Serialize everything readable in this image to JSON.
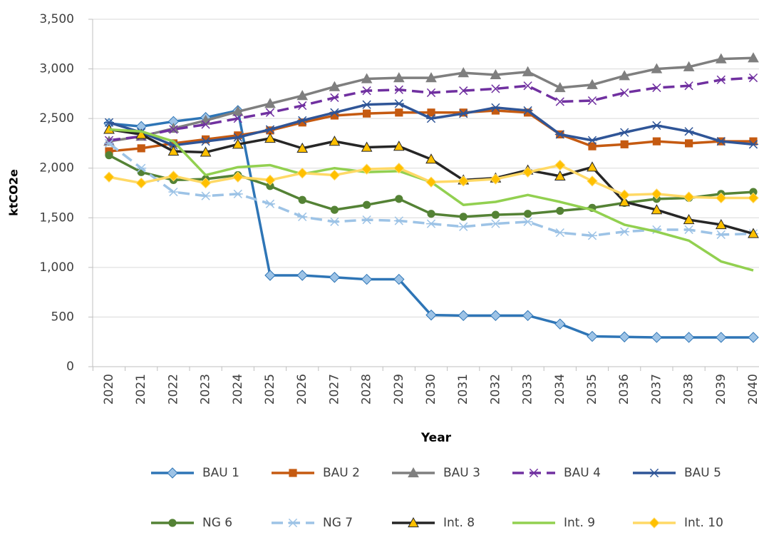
{
  "chart_data": {
    "type": "line",
    "x_label": "Year",
    "y_label": "ktCO2e",
    "categories": [
      "2020",
      "2021",
      "2022",
      "2023",
      "2024",
      "2025",
      "2026",
      "2027",
      "2028",
      "2029",
      "2030",
      "2031",
      "2032",
      "2033",
      "2034",
      "2035",
      "2036",
      "2037",
      "2038",
      "2039",
      "2040"
    ],
    "ylim": [
      0,
      3500
    ],
    "yticks": [
      0,
      500,
      {
        "value": 1000,
        "label": "1,000"
      },
      {
        "value": 1500,
        "label": "1,500"
      },
      {
        "value": 2000,
        "label": "2,000"
      },
      {
        "value": 2500,
        "label": "2,500"
      },
      {
        "value": 3000,
        "label": "3,000"
      },
      {
        "value": 3500,
        "label": "3,500"
      }
    ],
    "grid": true,
    "legend": "bottom",
    "series": [
      {
        "name": "BAU 1",
        "color": "#2e75b6",
        "marker": "diamond",
        "marker_color": "#9dc3e6",
        "values": [
          2450,
          2420,
          2470,
          2510,
          2580,
          920,
          920,
          900,
          880,
          880,
          520,
          515,
          515,
          515,
          430,
          305,
          300,
          295,
          295,
          295,
          295
        ]
      },
      {
        "name": "BAU 2",
        "color": "#c55a11",
        "marker": "square",
        "marker_color": "#c55a11",
        "values": [
          2170,
          2200,
          2250,
          2290,
          2330,
          2380,
          2460,
          2530,
          2550,
          2560,
          2560,
          2560,
          2580,
          2560,
          2340,
          2220,
          2240,
          2270,
          2250,
          2270,
          2270
        ]
      },
      {
        "name": "BAU 3",
        "color": "#7f7f7f",
        "marker": "triangle",
        "marker_color": "#7f7f7f",
        "values": [
          2270,
          2320,
          2400,
          2480,
          2570,
          2650,
          2730,
          2820,
          2900,
          2910,
          2910,
          2960,
          2940,
          2970,
          2810,
          2840,
          2930,
          3000,
          3020,
          3100,
          3110
        ]
      },
      {
        "name": "BAU 4",
        "color": "#7030a0",
        "marker": "x",
        "marker_color": "#7030a0",
        "dash": true,
        "values": [
          2280,
          2320,
          2390,
          2440,
          2500,
          2560,
          2630,
          2710,
          2780,
          2790,
          2760,
          2780,
          2800,
          2830,
          2670,
          2680,
          2760,
          2810,
          2830,
          2890,
          2910
        ]
      },
      {
        "name": "BAU 5",
        "color": "#2f5597",
        "marker": "star",
        "marker_color": "#2f5597",
        "values": [
          2460,
          2360,
          2230,
          2270,
          2310,
          2390,
          2480,
          2560,
          2640,
          2650,
          2500,
          2550,
          2610,
          2580,
          2340,
          2280,
          2360,
          2430,
          2370,
          2270,
          2240
        ]
      },
      {
        "name": "NG 6",
        "color": "#548235",
        "marker": "circle",
        "marker_color": "#548235",
        "values": [
          2130,
          1960,
          1880,
          1890,
          1930,
          1820,
          1680,
          1580,
          1630,
          1690,
          1540,
          1510,
          1530,
          1540,
          1570,
          1600,
          1650,
          1690,
          1700,
          1740,
          1760
        ]
      },
      {
        "name": "NG 7",
        "color": "#9dc3e6",
        "marker": "star",
        "marker_color": "#9dc3e6",
        "dash": true,
        "values": [
          2250,
          2000,
          1760,
          1720,
          1740,
          1640,
          1510,
          1460,
          1480,
          1470,
          1440,
          1410,
          1440,
          1460,
          1350,
          1320,
          1360,
          1380,
          1380,
          1330,
          1340
        ]
      },
      {
        "name": "Int. 8",
        "color": "#262626",
        "marker": "triangle",
        "marker_color": "#ffc000",
        "values": [
          2390,
          2340,
          2170,
          2160,
          2240,
          2300,
          2200,
          2270,
          2210,
          2220,
          2090,
          1880,
          1900,
          1980,
          1920,
          2010,
          1660,
          1580,
          1480,
          1430,
          1340
        ]
      },
      {
        "name": "Int. 9",
        "color": "#92d050",
        "values": [
          2390,
          2370,
          2270,
          1930,
          2010,
          2030,
          1940,
          2000,
          1960,
          1970,
          1860,
          1630,
          1660,
          1730,
          1660,
          1580,
          1430,
          1360,
          1270,
          1060,
          970
        ]
      },
      {
        "name": "Int. 10",
        "color": "#ffd966",
        "marker": "diamond",
        "marker_color": "#ffc000",
        "values": [
          1910,
          1850,
          1920,
          1850,
          1910,
          1880,
          1950,
          1930,
          1990,
          2000,
          1860,
          1870,
          1890,
          1960,
          2030,
          1870,
          1730,
          1740,
          1710,
          1700,
          1700
        ]
      }
    ]
  }
}
